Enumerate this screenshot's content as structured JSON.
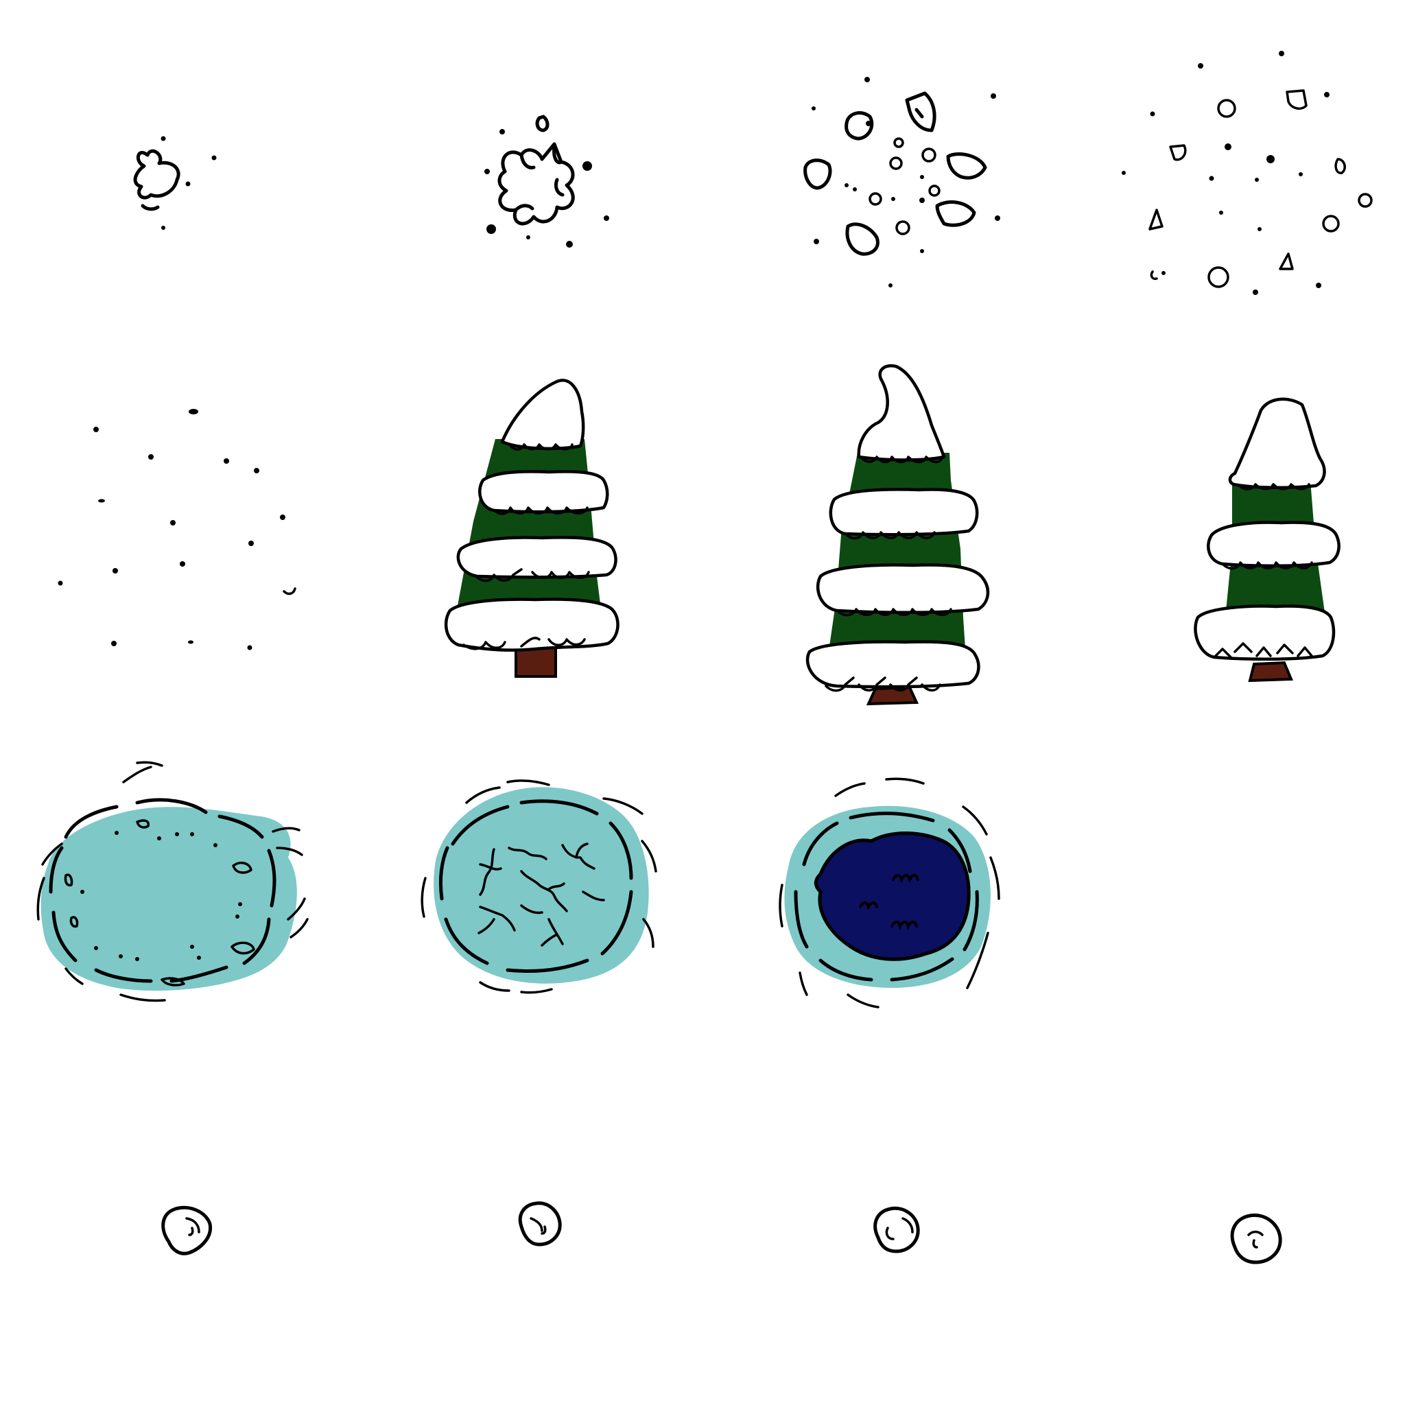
{
  "sheet": {
    "background": "#ffffff",
    "ink_color": "#000000",
    "rows": [
      {
        "row": "snowball-burst-frames",
        "frames": [
          "snowball-icon",
          "snowball-breaking-icon",
          "snowball-shatter-icon",
          "snowball-scatter-icon"
        ]
      },
      {
        "row": "snowy-pine-tree-frames",
        "frames": [
          "snow-dust-icon",
          "snowy-pine-tree-icon",
          "tall-snowy-pine-tree-icon",
          "small-snowy-pine-tree-icon"
        ]
      },
      {
        "row": "ice-pond-frames",
        "frames": [
          "frozen-pond-icon",
          "cracked-ice-pond-icon",
          "open-water-hole-icon"
        ]
      },
      {
        "row": "small-snowball-frames",
        "frames": [
          "small-snowball-icon",
          "small-snowball-icon",
          "small-snowball-icon",
          "small-snowball-icon"
        ]
      }
    ]
  },
  "colors": {
    "ice": "#7ec8c8",
    "deep_water": "#0c1060",
    "pine_green": "#0d4a12",
    "trunk": "#5a1e10",
    "snow": "#ffffff"
  }
}
